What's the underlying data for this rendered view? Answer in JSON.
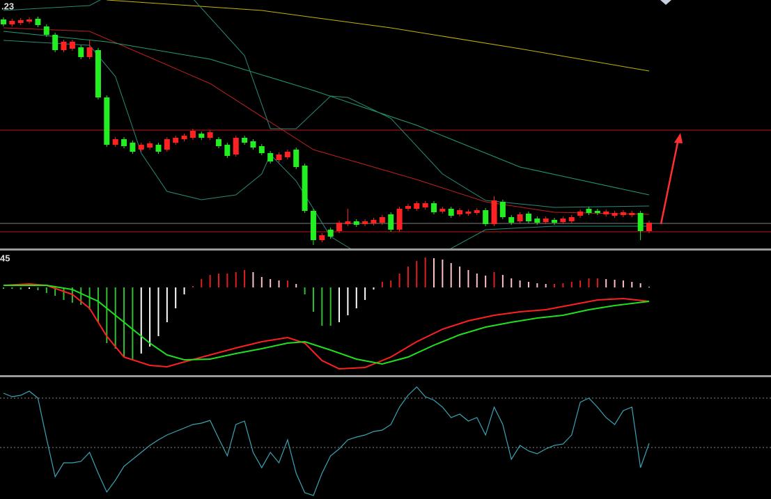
{
  "chart_data": [
    {
      "type": "candlestick",
      "label": ".23",
      "up_color": "#ff2222",
      "down_color": "#22ee22",
      "ylim": [
        0,
        360
      ],
      "open": [
        332,
        325,
        327,
        329,
        333,
        322,
        310,
        288,
        290,
        292,
        278,
        288,
        220,
        152,
        160,
        155,
        145,
        148,
        152,
        145,
        155,
        160,
        162,
        168,
        162,
        160,
        152,
        138,
        162,
        157,
        150,
        140,
        130,
        134,
        145,
        122,
        57,
        15,
        30,
        28,
        38,
        42,
        38,
        39,
        40,
        52,
        30,
        60,
        60,
        62,
        68,
        56,
        60,
        52,
        53,
        54,
        58,
        38,
        70,
        48,
        42,
        53,
        46,
        41,
        44,
        41,
        42,
        50,
        60,
        57,
        52,
        50,
        51,
        51,
        54,
        28
      ],
      "high": [
        335,
        333,
        334,
        335,
        336,
        325,
        313,
        303,
        303,
        295,
        302,
        291,
        223,
        163,
        163,
        158,
        155,
        157,
        155,
        163,
        165,
        168,
        175,
        171,
        173,
        163,
        155,
        165,
        165,
        160,
        153,
        143,
        141,
        145,
        148,
        125,
        60,
        25,
        33,
        43,
        60,
        45,
        45,
        47,
        51,
        55,
        63,
        67,
        71,
        71,
        71,
        63,
        63,
        61,
        59,
        61,
        61,
        78,
        73,
        51,
        55,
        56,
        49,
        49,
        47,
        49,
        51,
        59,
        63,
        60,
        59,
        57,
        58,
        57,
        57,
        43
      ],
      "low": [
        322,
        322,
        324,
        326,
        321,
        307,
        285,
        285,
        287,
        275,
        275,
        217,
        149,
        149,
        147,
        139,
        142,
        145,
        139,
        142,
        152,
        157,
        159,
        159,
        159,
        147,
        133,
        135,
        152,
        145,
        137,
        125,
        127,
        131,
        117,
        54,
        8,
        12,
        17,
        25,
        35,
        34,
        35,
        36,
        37,
        27,
        27,
        57,
        57,
        59,
        52,
        53,
        47,
        49,
        50,
        51,
        35,
        35,
        45,
        37,
        39,
        39,
        37,
        38,
        37,
        38,
        39,
        47,
        51,
        51,
        49,
        47,
        48,
        48,
        15,
        25
      ],
      "close": [
        325,
        330,
        331,
        332,
        324,
        310,
        288,
        300,
        300,
        278,
        292,
        220,
        152,
        160,
        150,
        142,
        152,
        154,
        142,
        160,
        162,
        165,
        172,
        162,
        170,
        150,
        136,
        162,
        155,
        148,
        140,
        128,
        138,
        142,
        120,
        57,
        15,
        22,
        20,
        40,
        42,
        37,
        42,
        44,
        48,
        30,
        60,
        64,
        68,
        68,
        55,
        60,
        50,
        58,
        56,
        58,
        38,
        72,
        48,
        40,
        52,
        42,
        40,
        46,
        40,
        46,
        48,
        56,
        54,
        54,
        56,
        54,
        55,
        54,
        28,
        40
      ],
      "overlays": [
        {
          "color": "#c8b400",
          "x": [
            12,
            30,
            45,
            60,
            75
          ],
          "values": [
            360,
            345,
            320,
            290,
            258
          ]
        },
        {
          "color": "#c02020",
          "x": [
            0,
            10,
            24,
            36,
            48,
            56,
            64,
            75
          ],
          "values": [
            320,
            315,
            240,
            145,
            102,
            70,
            55,
            52
          ]
        },
        {
          "color": "#1fa070",
          "x": [
            0,
            12,
            24,
            36,
            48,
            60,
            75
          ],
          "values": [
            315,
            300,
            275,
            230,
            180,
            120,
            80
          ]
        },
        {
          "color": "#2a8a7a",
          "x": [
            0,
            10,
            12,
            17,
            22,
            28,
            31,
            34,
            38,
            40,
            45,
            51,
            56,
            64,
            75
          ],
          "values": [
            345,
            352,
            365,
            400,
            362,
            280,
            175,
            175,
            222,
            220,
            190,
            110,
            72,
            62,
            64
          ]
        },
        {
          "color": "#2a8a7a",
          "x": [
            0,
            10,
            13,
            16,
            19,
            23,
            27,
            30,
            31,
            34,
            36,
            38,
            40,
            45,
            52,
            56,
            64,
            75
          ],
          "values": [
            302,
            295,
            250,
            140,
            85,
            73,
            80,
            110,
            138,
            100,
            60,
            20,
            5,
            -30,
            3,
            30,
            35,
            35
          ]
        }
      ],
      "hlines": [
        {
          "value": 173,
          "color": "#c01818"
        },
        {
          "value": 39,
          "color": "#808080"
        },
        {
          "value": 27,
          "color": "#c01818"
        }
      ]
    },
    {
      "type": "macd",
      "label": "45",
      "ylim": [
        -125,
        53
      ],
      "histogram": [
        -2,
        -2,
        -3,
        -2,
        -4,
        -8,
        -12,
        -18,
        -22,
        -25,
        -32,
        -50,
        -80,
        -88,
        -100,
        -105,
        -95,
        -85,
        -70,
        -50,
        -30,
        -10,
        2,
        12,
        18,
        20,
        20,
        22,
        25,
        22,
        15,
        12,
        10,
        10,
        5,
        -10,
        -35,
        -55,
        -55,
        -50,
        -40,
        -30,
        -18,
        -3,
        8,
        10,
        20,
        30,
        38,
        43,
        42,
        40,
        35,
        30,
        25,
        20,
        17,
        22,
        18,
        13,
        10,
        8,
        6,
        5,
        5,
        6,
        8,
        10,
        13,
        13,
        12,
        11,
        10,
        8,
        6,
        1
      ],
      "colors": {
        "up_rising": "#e02020",
        "up_falling": "#ffc0c8",
        "down_falling": "#30c030",
        "down_rising": "#ffffff"
      },
      "series": [
        {
          "color": "#ff2020",
          "x": [
            0,
            3,
            5,
            8,
            10,
            12,
            14,
            17,
            19,
            21,
            24,
            27,
            30,
            33,
            35,
            37,
            39,
            42,
            45,
            48,
            51,
            54,
            57,
            60,
            63,
            66,
            69,
            72,
            75
          ],
          "values": [
            3,
            5,
            3,
            -10,
            -30,
            -70,
            -100,
            -112,
            -114,
            -107,
            -97,
            -87,
            -78,
            -72,
            -80,
            -105,
            -117,
            -115,
            -100,
            -78,
            -60,
            -48,
            -40,
            -35,
            -32,
            -25,
            -18,
            -16,
            -20
          ]
        },
        {
          "color": "#20e020",
          "x": [
            0,
            5,
            8,
            11,
            14,
            17,
            19,
            21,
            24,
            27,
            30,
            33,
            35,
            38,
            41,
            44,
            47,
            50,
            53,
            56,
            59,
            62,
            65,
            68,
            71,
            75
          ],
          "values": [
            3,
            3,
            -3,
            -20,
            -50,
            -80,
            -97,
            -104,
            -103,
            -95,
            -88,
            -80,
            -78,
            -90,
            -103,
            -110,
            -100,
            -83,
            -68,
            -57,
            -50,
            -44,
            -40,
            -32,
            -26,
            -20
          ]
        }
      ]
    },
    {
      "type": "line",
      "color": "#3aa5b5",
      "ylim": [
        0,
        175
      ],
      "hlines": [
        145,
        74
      ],
      "values": [
        152,
        147,
        149,
        155,
        145,
        87,
        32,
        52,
        52,
        54,
        67,
        37,
        10,
        27,
        47,
        57,
        67,
        77,
        85,
        92,
        97,
        102,
        107,
        109,
        113,
        87,
        62,
        107,
        112,
        67,
        45,
        67,
        52,
        85,
        37,
        9,
        5,
        37,
        62,
        72,
        85,
        89,
        92,
        97,
        99,
        107,
        132,
        149,
        161,
        147,
        142,
        132,
        117,
        122,
        112,
        117,
        92,
        132,
        107,
        57,
        77,
        69,
        65,
        72,
        77,
        79,
        92,
        139,
        145,
        132,
        117,
        107,
        127,
        132,
        45,
        80
      ]
    }
  ]
}
